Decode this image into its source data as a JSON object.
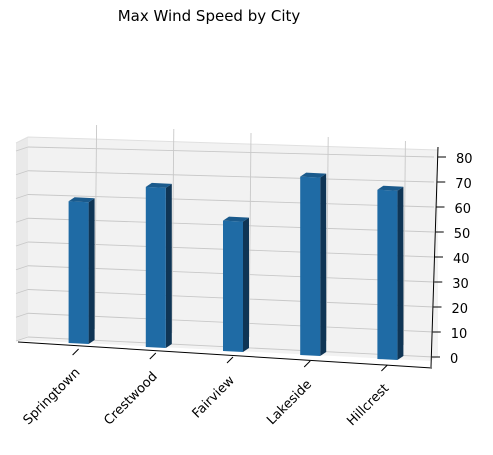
{
  "chart_data": {
    "type": "bar",
    "title": "Max Wind Speed by City",
    "xlabel": "",
    "ylabel": "",
    "categories": [
      "Springtown",
      "Crestwood",
      "Fairview",
      "Lakeside",
      "Hillcrest"
    ],
    "values": [
      62,
      70,
      57,
      78,
      74
    ],
    "ylim": [
      0,
      80
    ],
    "yticks": [
      0,
      10,
      20,
      30,
      40,
      50,
      60,
      70,
      80
    ],
    "projection": "3d",
    "grid": true,
    "colors": {
      "bar_front": "#1f6ba5",
      "bar_side": "#0f3555",
      "bar_top": "#1a5a8c",
      "pane": "#f2f2f2",
      "grid": "#c8c8c8"
    }
  }
}
